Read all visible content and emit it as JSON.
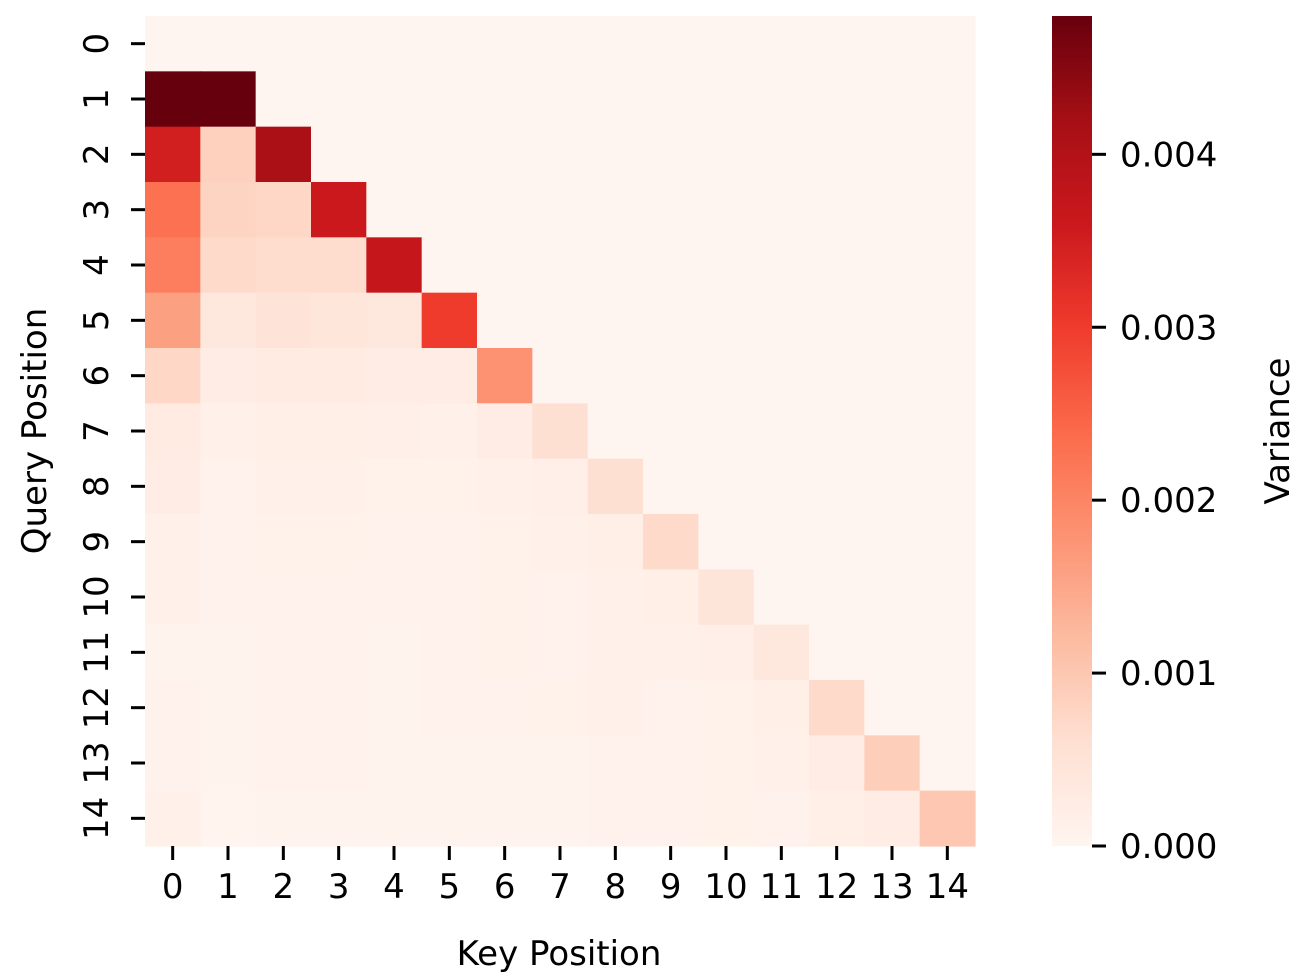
{
  "chart_data": {
    "type": "heatmap",
    "title": "",
    "xlabel": "Key Position",
    "ylabel": "Query Position",
    "x_categories": [
      "0",
      "1",
      "2",
      "3",
      "4",
      "5",
      "6",
      "7",
      "8",
      "9",
      "10",
      "11",
      "12",
      "13",
      "14"
    ],
    "y_categories": [
      "0",
      "1",
      "2",
      "3",
      "4",
      "5",
      "6",
      "7",
      "8",
      "9",
      "10",
      "11",
      "12",
      "13",
      "14"
    ],
    "colormap": "Reds",
    "vmin": 0.0,
    "vmax": 0.0048,
    "colorbar": {
      "label": "Variance",
      "ticks": [
        0.0,
        0.001,
        0.002,
        0.003,
        0.004
      ],
      "tick_labels": [
        "0.000",
        "0.001",
        "0.002",
        "0.003",
        "0.004"
      ]
    },
    "values": [
      [
        0,
        0,
        0,
        0,
        0,
        0,
        0,
        0,
        0,
        0,
        0,
        0,
        0,
        0,
        0
      ],
      [
        0.0048,
        0.0048,
        0,
        0,
        0,
        0,
        0,
        0,
        0,
        0,
        0,
        0,
        0,
        0,
        0
      ],
      [
        0.0035,
        0.00085,
        0.0041,
        0,
        0,
        0,
        0,
        0,
        0,
        0,
        0,
        0,
        0,
        0,
        0
      ],
      [
        0.0023,
        0.0008,
        0.00075,
        0.0036,
        0,
        0,
        0,
        0,
        0,
        0,
        0,
        0,
        0,
        0,
        0
      ],
      [
        0.0021,
        0.0007,
        0.00065,
        0.00065,
        0.0037,
        0,
        0,
        0,
        0,
        0,
        0,
        0,
        0,
        0,
        0
      ],
      [
        0.0016,
        0.0004,
        0.00048,
        0.00042,
        0.0004,
        0.003,
        0,
        0,
        0,
        0,
        0,
        0,
        0,
        0,
        0
      ],
      [
        0.00075,
        0.00022,
        0.00028,
        0.00028,
        0.00025,
        0.00025,
        0.0018,
        0,
        0,
        0,
        0,
        0,
        0,
        0,
        0
      ],
      [
        0.0003,
        0.00012,
        0.00018,
        0.00018,
        0.00016,
        0.00015,
        0.00022,
        0.0006,
        0,
        0,
        0,
        0,
        0,
        0,
        0
      ],
      [
        0.00022,
        8e-05,
        0.00012,
        0.00012,
        0.0001,
        0.0001,
        0.00012,
        0.00016,
        0.0006,
        0,
        0,
        0,
        0,
        0,
        0
      ],
      [
        0.00012,
        8e-05,
        0.0001,
        0.0001,
        9e-05,
        9e-05,
        0.0001,
        0.00012,
        0.00018,
        0.0007,
        0,
        0,
        0,
        0,
        0
      ],
      [
        0.00012,
        8e-05,
        9e-05,
        9e-05,
        8e-05,
        8e-05,
        0.0001,
        0.00011,
        0.00013,
        0.00018,
        0.00045,
        0,
        0,
        0,
        0
      ],
      [
        5e-05,
        7e-05,
        8e-05,
        8e-05,
        7e-05,
        9e-05,
        0.0001,
        0.00011,
        0.00012,
        0.00014,
        0.00016,
        0.0004,
        0,
        0,
        0
      ],
      [
        8e-05,
        7e-05,
        8e-05,
        8e-05,
        6e-05,
        9e-05,
        9e-05,
        0.0001,
        0.00012,
        0.00011,
        0.0001,
        0.00018,
        0.0007,
        0,
        0
      ],
      [
        8e-05,
        7e-05,
        8e-05,
        8e-05,
        5e-05,
        6e-05,
        6e-05,
        7e-05,
        8e-05,
        8e-05,
        0.0001,
        0.00012,
        0.00025,
        0.0009,
        0
      ],
      [
        0.00012,
        4e-05,
        6e-05,
        6e-05,
        5e-05,
        6e-05,
        6e-05,
        7e-05,
        8e-05,
        9e-05,
        0.0001,
        0.00011,
        0.00018,
        0.00025,
        0.001
      ]
    ]
  }
}
